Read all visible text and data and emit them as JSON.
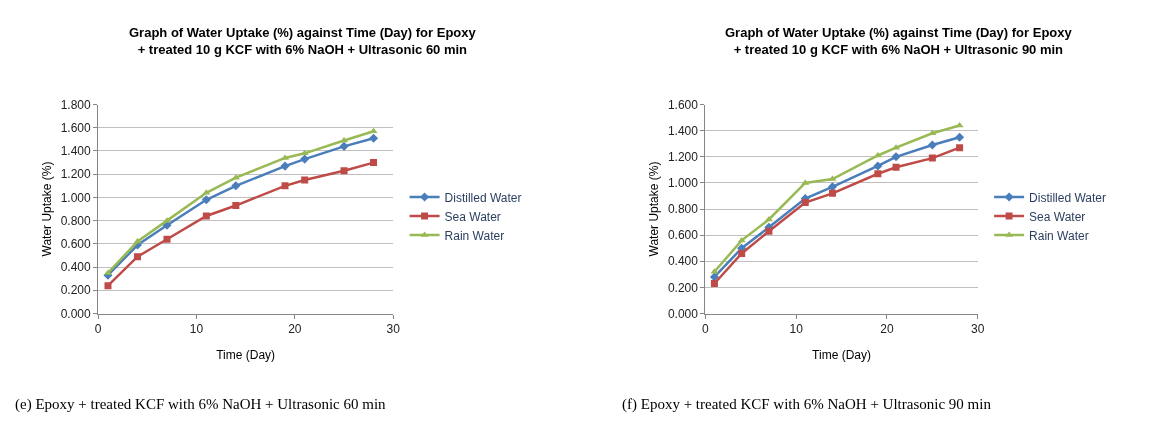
{
  "chart_data": [
    {
      "type": "line",
      "title": "Graph of Water Uptake (%) against Time (Day) for Epoxy\n+ treated 10 g KCF with 6% NaOH + Ultrasonic 60 min",
      "xlabel": "Time (Day)",
      "ylabel": "Water Uptake (%)",
      "x": [
        1,
        4,
        7,
        11,
        14,
        19,
        21,
        25,
        28
      ],
      "series": [
        {
          "name": "Distilled Water",
          "color": "#4a7ebb",
          "marker": "diamond",
          "values": [
            0.33,
            0.59,
            0.76,
            0.98,
            1.1,
            1.27,
            1.33,
            1.44,
            1.51
          ]
        },
        {
          "name": "Sea Water",
          "color": "#be4b48",
          "marker": "square",
          "values": [
            0.24,
            0.49,
            0.64,
            0.84,
            0.93,
            1.1,
            1.15,
            1.23,
            1.3
          ]
        },
        {
          "name": "Rain Water",
          "color": "#98b954",
          "marker": "triangle",
          "values": [
            0.35,
            0.62,
            0.8,
            1.04,
            1.17,
            1.34,
            1.38,
            1.49,
            1.57
          ]
        }
      ],
      "xlim": [
        0,
        30
      ],
      "xticks": [
        0,
        10,
        20,
        30
      ],
      "ylim": [
        0,
        1.8
      ],
      "yticks": [
        {
          "value": 0,
          "label": "0.000"
        },
        {
          "value": 0.2,
          "label": "0.200"
        },
        {
          "value": 0.4,
          "label": "0.400"
        },
        {
          "value": 0.6,
          "label": "0.600"
        },
        {
          "value": 0.8,
          "label": "0.800"
        },
        {
          "value": 1.0,
          "label": "1.000"
        },
        {
          "value": 1.2,
          "label": "1.200"
        },
        {
          "value": 1.4,
          "label": "1.400"
        },
        {
          "value": 1.6,
          "label": "1.600"
        },
        {
          "value": 1.8,
          "label": "1.800"
        }
      ],
      "grid": "y",
      "legend": "right",
      "line_style": "solid",
      "annotations": [
        "(e) Epoxy + treated KCF with 6% NaOH + Ultrasonic 60 min"
      ]
    },
    {
      "type": "line",
      "title": "Graph of Water Uptake (%) against Time (Day) for Epoxy\n+ treated 10 g KCF with 6% NaOH + Ultrasonic 90 min",
      "xlabel": "Time (Day)",
      "ylabel": "Water Uptake (%)",
      "x": [
        1,
        4,
        7,
        11,
        14,
        19,
        21,
        25,
        28
      ],
      "series": [
        {
          "name": "Distilled Water",
          "color": "#4a7ebb",
          "marker": "diamond",
          "values": [
            0.28,
            0.5,
            0.66,
            0.88,
            0.97,
            1.13,
            1.2,
            1.29,
            1.35
          ]
        },
        {
          "name": "Sea Water",
          "color": "#be4b48",
          "marker": "square",
          "values": [
            0.23,
            0.46,
            0.63,
            0.85,
            0.92,
            1.07,
            1.12,
            1.19,
            1.27
          ]
        },
        {
          "name": "Rain Water",
          "color": "#98b954",
          "marker": "triangle",
          "values": [
            0.32,
            0.56,
            0.72,
            1.0,
            1.03,
            1.21,
            1.27,
            1.38,
            1.44
          ]
        }
      ],
      "xlim": [
        0,
        30
      ],
      "xticks": [
        0,
        10,
        20,
        30
      ],
      "ylim": [
        0,
        1.6
      ],
      "yticks": [
        {
          "value": 0,
          "label": "0.000"
        },
        {
          "value": 0.2,
          "label": "0.200"
        },
        {
          "value": 0.4,
          "label": "0.400"
        },
        {
          "value": 0.6,
          "label": "0.600"
        },
        {
          "value": 0.8,
          "label": "0.800"
        },
        {
          "value": 1.0,
          "label": "1.000"
        },
        {
          "value": 1.2,
          "label": "1.200"
        },
        {
          "value": 1.4,
          "label": "1.400"
        },
        {
          "value": 1.6,
          "label": "1.600"
        }
      ],
      "grid": "y",
      "legend": "right",
      "line_style": "solid",
      "annotations": [
        "(f) Epoxy + treated KCF with 6% NaOH + Ultrasonic 90 min"
      ]
    }
  ]
}
